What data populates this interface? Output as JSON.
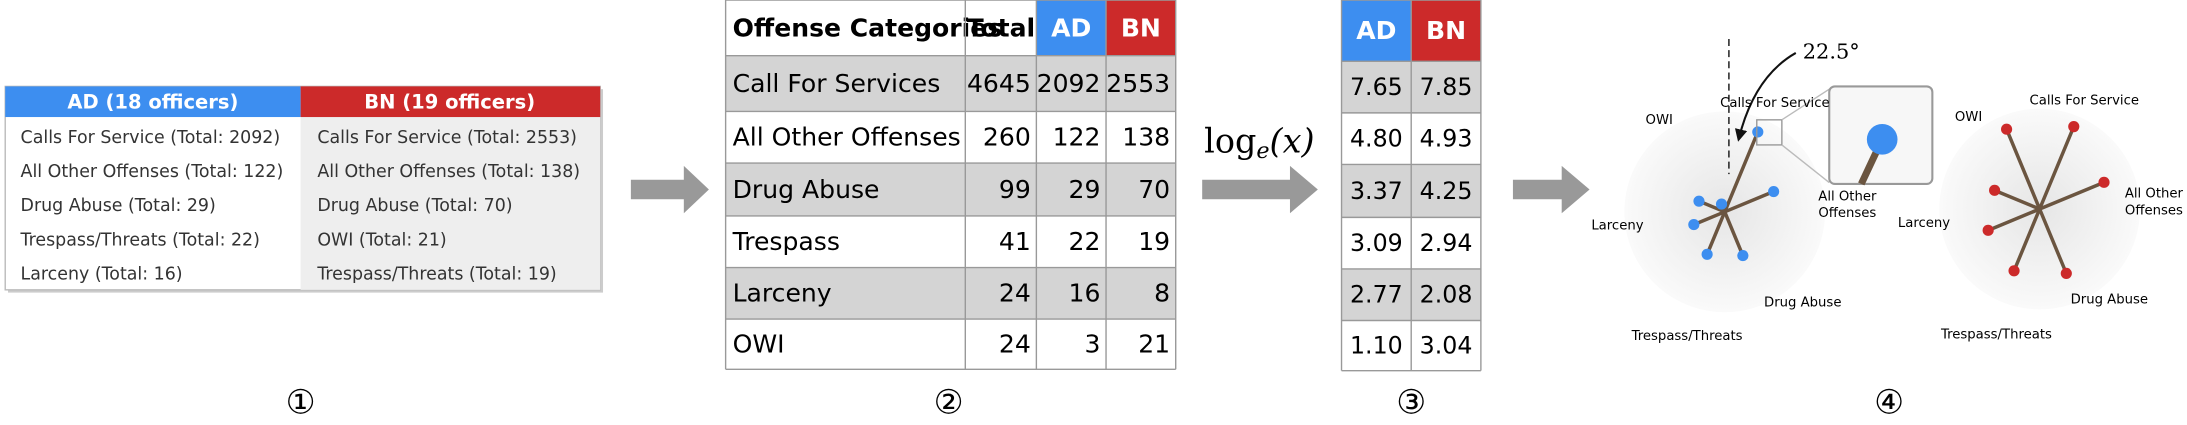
{
  "step1": {
    "ad_header": "AD (18 officers)",
    "bn_header": "BN (19 officers)",
    "ad_rows": [
      "Calls For Service (Total: 2092)",
      "All Other Offenses (Total: 122)",
      "Drug Abuse (Total: 29)",
      "Trespass/Threats (Total: 22)",
      "Larceny (Total: 16)"
    ],
    "bn_rows": [
      "Calls For Service (Total: 2553)",
      "All Other Offenses (Total: 138)",
      "Drug Abuse (Total: 70)",
      "OWI (Total: 21)",
      "Trespass/Threats (Total: 19)"
    ]
  },
  "step2": {
    "header": [
      "Offense Categories",
      "Total",
      "AD",
      "BN"
    ],
    "rows": [
      [
        "Call For Services",
        "4645",
        "2092",
        "2553"
      ],
      [
        "All Other Offenses",
        "260",
        "122",
        "138"
      ],
      [
        "Drug Abuse",
        "99",
        "29",
        "70"
      ],
      [
        "Trespass",
        "41",
        "22",
        "19"
      ],
      [
        "Larceny",
        "24",
        "16",
        "8"
      ],
      [
        "OWI",
        "24",
        "3",
        "21"
      ]
    ]
  },
  "transform": {
    "text": "log",
    "sub": "e",
    "arg": "(x)"
  },
  "step3": {
    "header": [
      "AD",
      "BN"
    ],
    "rows": [
      [
        "7.65",
        "7.85"
      ],
      [
        "4.80",
        "4.93"
      ],
      [
        "3.37",
        "4.25"
      ],
      [
        "3.09",
        "2.94"
      ],
      [
        "2.77",
        "2.08"
      ],
      [
        "1.10",
        "3.04"
      ]
    ]
  },
  "step4": {
    "angle": "22.5°",
    "glyph_ad": {
      "owi": "OWI",
      "calls": "Calls For Service",
      "other": [
        "All Other",
        "Offenses"
      ],
      "larceny": "Larceny",
      "drug": "Drug Abuse",
      "trespass": "Trespass/Threats"
    },
    "glyph_bn": {
      "owi": "OWI",
      "calls": "Calls For Service",
      "other": [
        "All Other",
        "Offenses"
      ],
      "larceny": "Larceny",
      "drug": "Drug Abuse",
      "trespass": "Trespass/Threats"
    }
  },
  "step_numbers": [
    "①",
    "②",
    "③",
    "④"
  ]
}
